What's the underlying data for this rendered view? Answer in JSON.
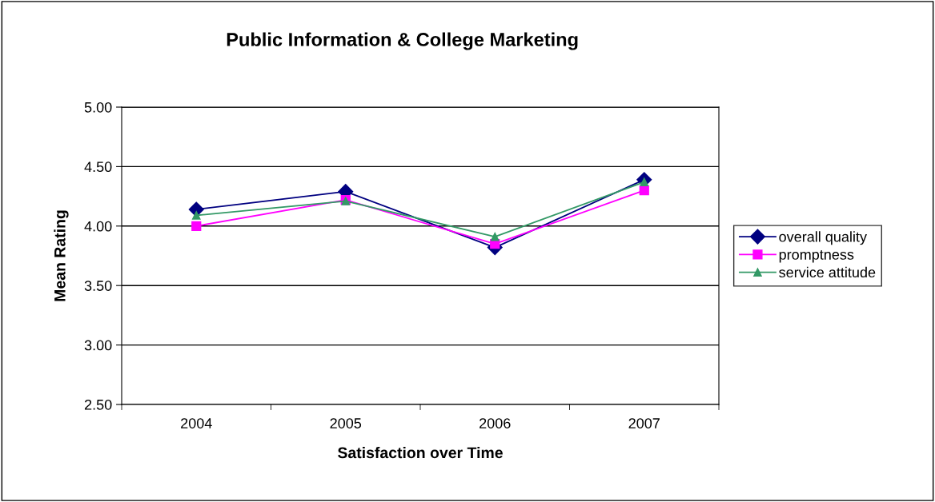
{
  "chart_data": {
    "type": "line",
    "title": "Public Information & College Marketing",
    "xlabel": "Satisfaction over Time",
    "ylabel": "Mean Rating",
    "categories": [
      "2004",
      "2005",
      "2006",
      "2007"
    ],
    "series": [
      {
        "name": "overall quality",
        "color": "#000080",
        "marker": "diamond",
        "values": [
          4.14,
          4.29,
          3.82,
          4.39
        ]
      },
      {
        "name": "promptness",
        "color": "#ff00ff",
        "marker": "square",
        "values": [
          4.0,
          4.22,
          3.85,
          4.3
        ]
      },
      {
        "name": "service attitude",
        "color": "#339966",
        "marker": "triangle",
        "values": [
          4.09,
          4.21,
          3.91,
          4.37
        ]
      }
    ],
    "ylim": [
      2.5,
      5.0
    ],
    "yticks": [
      {
        "value": 2.5,
        "label": "2.50"
      },
      {
        "value": 3.0,
        "label": "3.00"
      },
      {
        "value": 3.5,
        "label": "3.50"
      },
      {
        "value": 4.0,
        "label": "4.00"
      },
      {
        "value": 4.5,
        "label": "4.50"
      },
      {
        "value": 5.0,
        "label": "5.00"
      }
    ],
    "grid": "y",
    "legend": "right",
    "line_style": "solid"
  }
}
